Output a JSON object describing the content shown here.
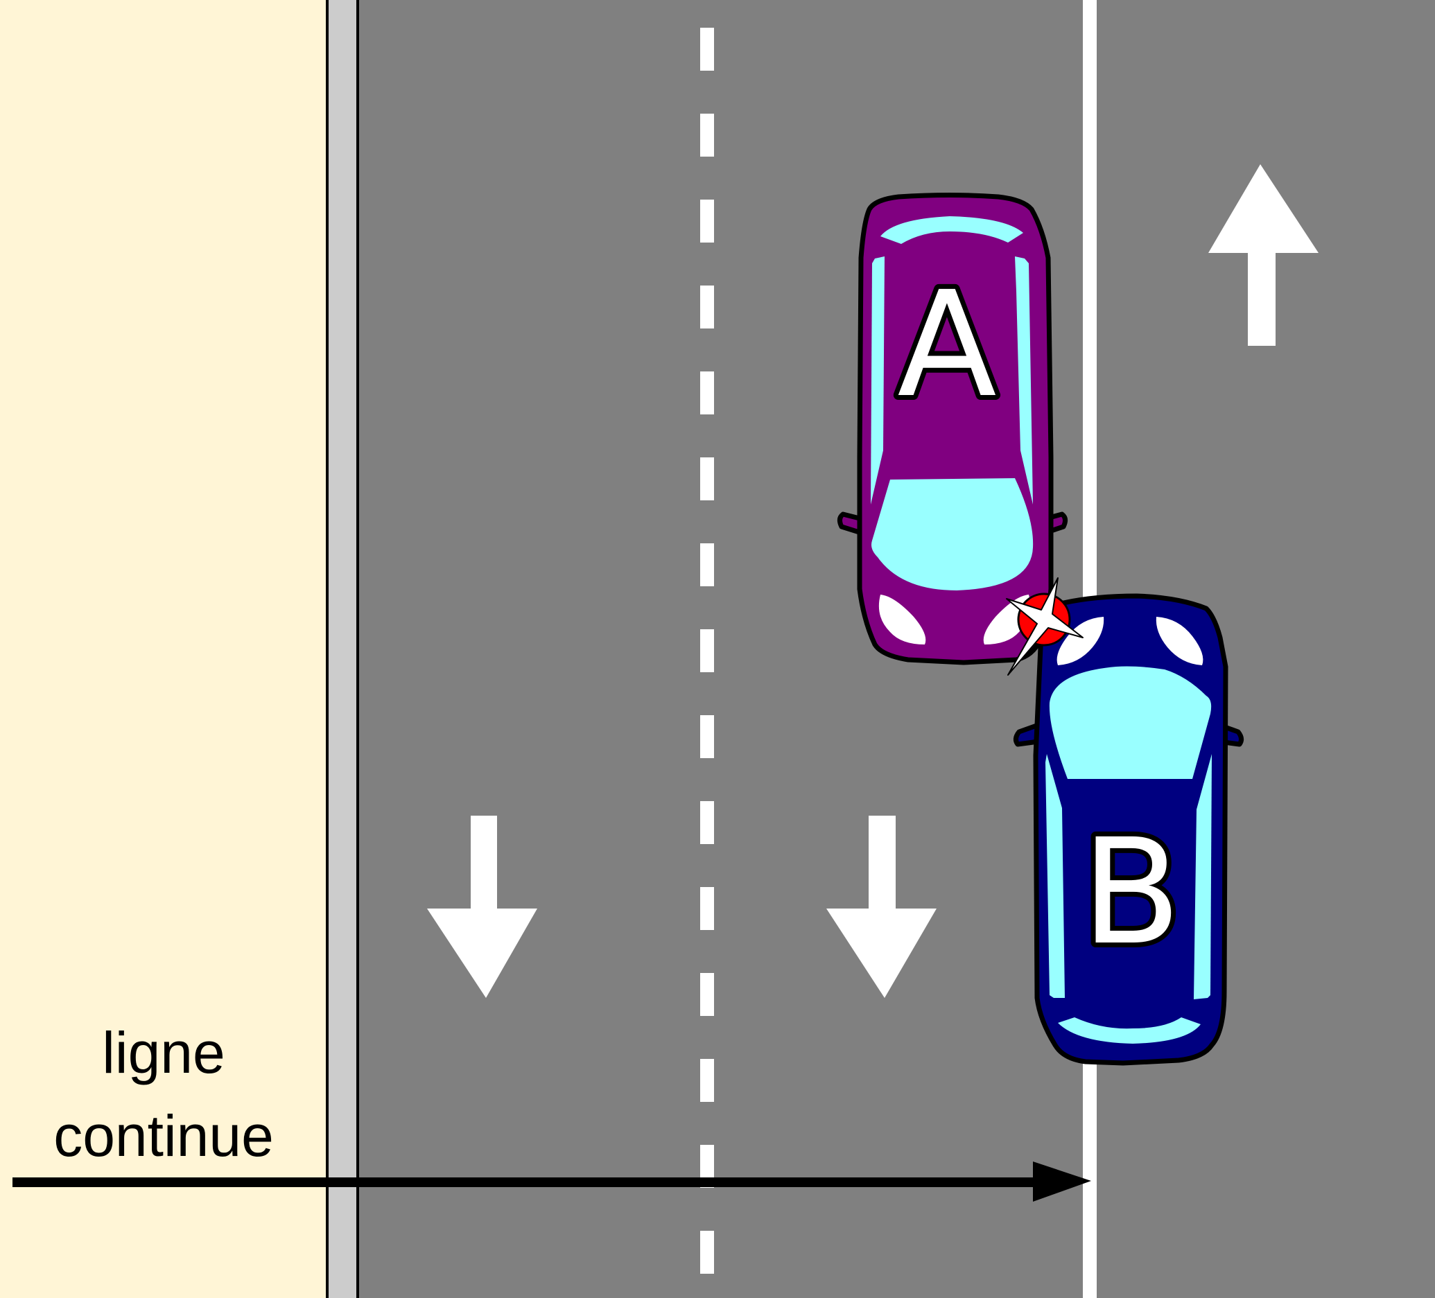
{
  "car_a": {
    "label": "A",
    "color": "#800080"
  },
  "car_b": {
    "label": "B",
    "color": "#000080"
  },
  "annotation": {
    "line1": "ligne",
    "line2": "continue"
  },
  "colors": {
    "sidewalk": "#fff5d6",
    "curb": "#cccccc",
    "road": "#808080",
    "marking": "#ffffff",
    "glass": "#99ffff",
    "impact": "#ff0000"
  },
  "lane_arrows": [
    {
      "direction": "down"
    },
    {
      "direction": "down"
    },
    {
      "direction": "up"
    }
  ]
}
